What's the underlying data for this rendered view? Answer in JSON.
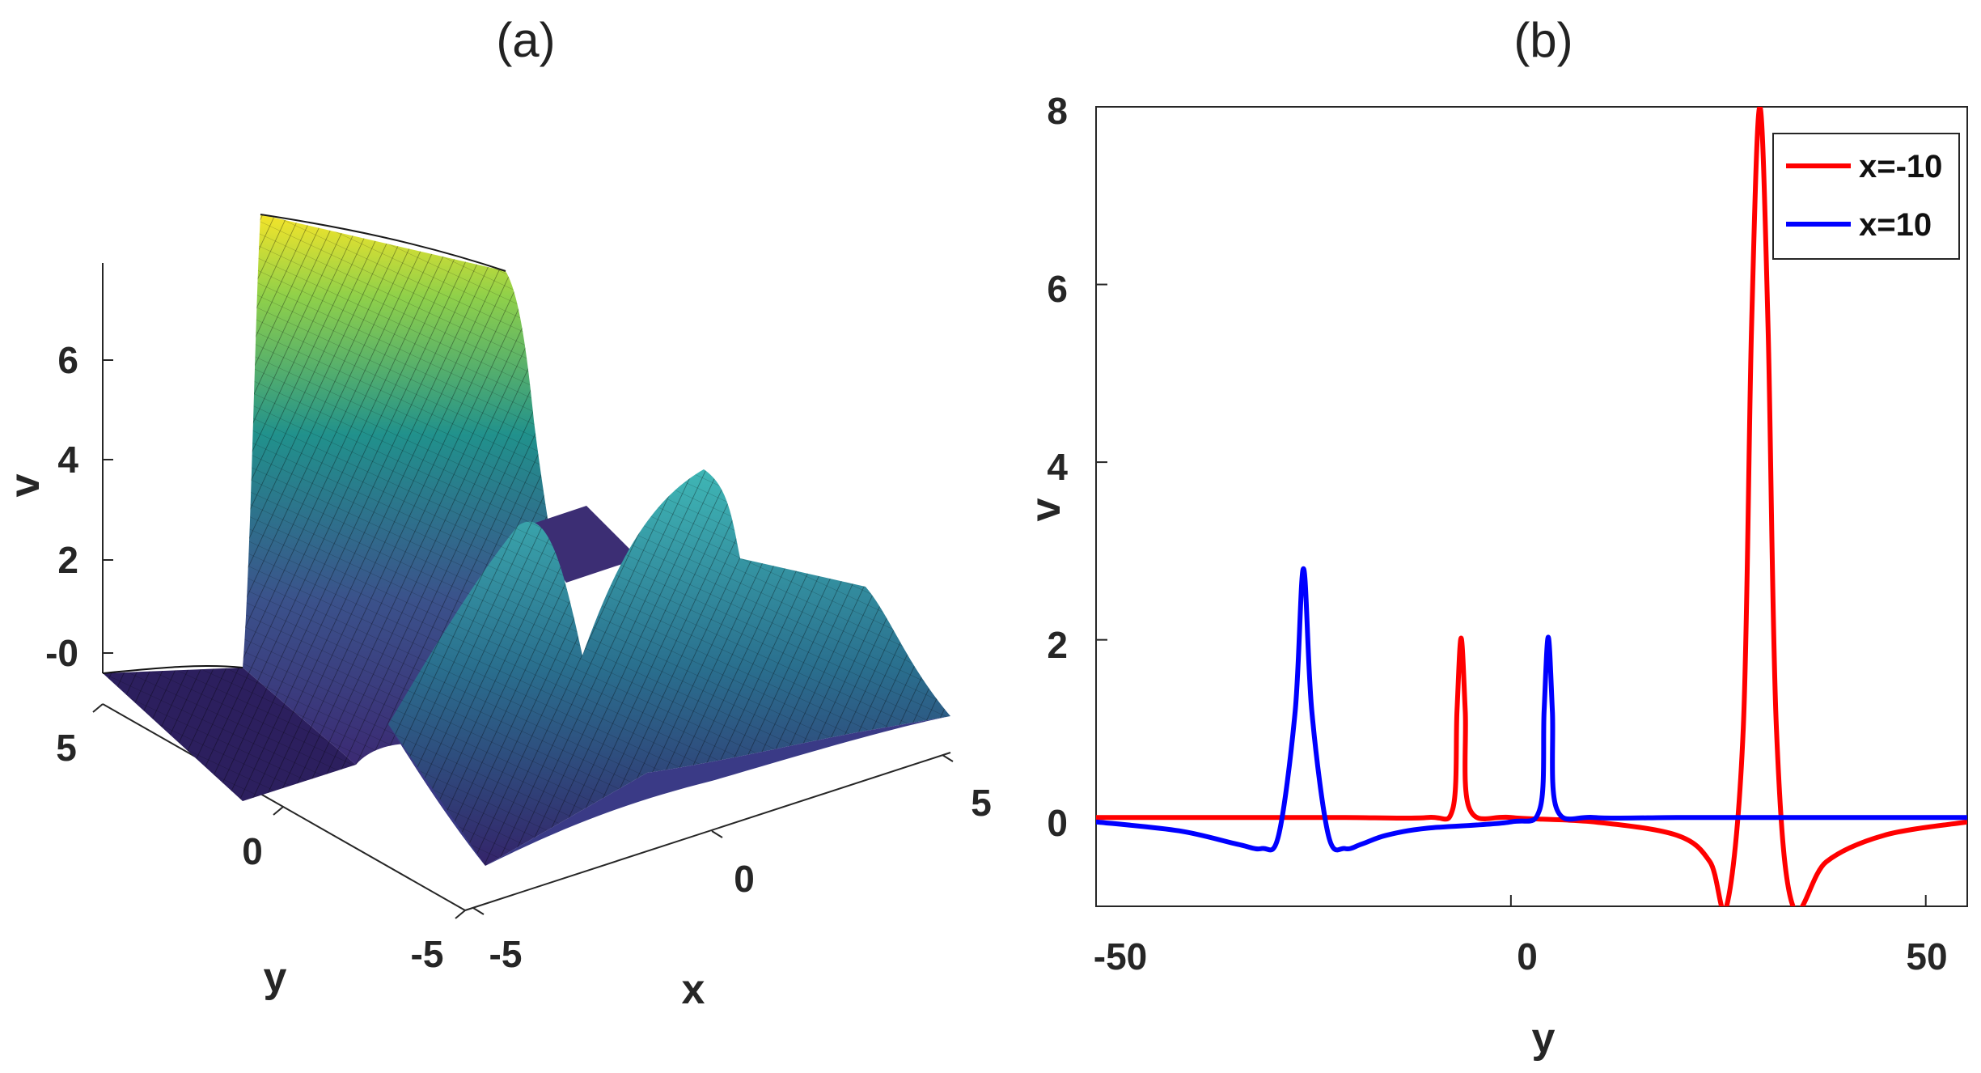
{
  "panels": [
    {
      "label": "(a)",
      "type": "surface3d",
      "zlabel": "v",
      "xlabel": "x",
      "ylabel": "y",
      "x_ticks": [
        "-5",
        "0",
        "5"
      ],
      "y_ticks": [
        "5",
        "0",
        "-5"
      ],
      "z_ticks": [
        "-0",
        "2",
        "4",
        "6"
      ],
      "colormap": [
        "#440154",
        "#3b528b",
        "#21918c",
        "#5ec962",
        "#fde725"
      ]
    },
    {
      "label": "(b)",
      "type": "line",
      "xlabel": "y",
      "ylabel": "v",
      "x_ticks": [
        "-50",
        "0",
        "50"
      ],
      "y_ticks": [
        "0",
        "2",
        "4",
        "6",
        "8"
      ]
    }
  ],
  "chart_data": {
    "type": "line",
    "title": "(b)",
    "xlabel": "y",
    "ylabel": "v",
    "xlim": [
      -50,
      55
    ],
    "ylim": [
      -1,
      8
    ],
    "series": [
      {
        "name": "x=-10",
        "color": "#ff0000",
        "x": [
          -50,
          -40,
          -30,
          -20,
          -10,
          -7,
          -6.5,
          -6,
          -5.5,
          -5,
          0,
          10,
          20,
          24,
          26,
          28,
          29,
          30,
          31,
          32,
          34,
          38,
          45,
          55
        ],
        "y": [
          0,
          0,
          0,
          0,
          0,
          0.1,
          1.2,
          2.02,
          1.2,
          0.1,
          0,
          -0.05,
          -0.2,
          -0.5,
          -1.0,
          1.0,
          5.5,
          8.0,
          5.5,
          1.0,
          -1.0,
          -0.5,
          -0.2,
          -0.05
        ]
      },
      {
        "name": "x=10",
        "color": "#0000ff",
        "x": [
          -50,
          -40,
          -33,
          -30,
          -28,
          -26,
          -25,
          -24,
          -22,
          -20,
          -18,
          -15,
          -10,
          0,
          3.5,
          4,
          4.5,
          5,
          5.5,
          10,
          20,
          30,
          55
        ],
        "y": [
          -0.05,
          -0.15,
          -0.3,
          -0.35,
          -0.2,
          1.2,
          2.8,
          1.2,
          -0.2,
          -0.35,
          -0.3,
          -0.2,
          -0.12,
          -0.05,
          0.1,
          1.2,
          2.03,
          1.2,
          0.1,
          0,
          0,
          0,
          0
        ]
      }
    ],
    "legend": "top-right"
  }
}
